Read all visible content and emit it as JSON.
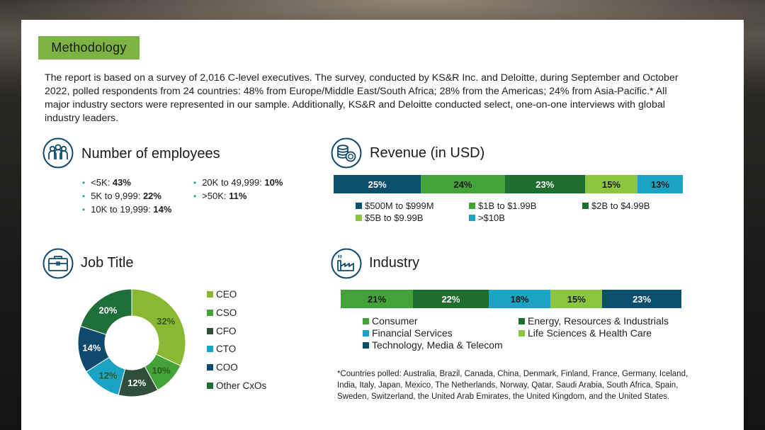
{
  "methodology": {
    "label": "Methodology",
    "text": "The report is based on a survey of 2,016 C-level executives. The survey, conducted by KS&R Inc. and Deloitte, during September and October 2022, polled respondents from 24 countries: 48% from Europe/Middle East/South Africa; 28% from the Americas; 24% from Asia-Pacific.* All major industry sectors were represented in our sample. Additionally, KS&R and Deloitte conducted select, one-on-one interviews with global industry leaders."
  },
  "employees": {
    "title": "Number of employees",
    "icon": "people-icon",
    "items": [
      {
        "label": "<5K: ",
        "value": "43%"
      },
      {
        "label": "5K to 9,999: ",
        "value": "22%"
      },
      {
        "label": "10K to 19,999: ",
        "value": "14%"
      },
      {
        "label": "20K to 49,999: ",
        "value": "10%"
      },
      {
        "label": ">50K: ",
        "value": "11%"
      }
    ]
  },
  "revenue": {
    "title": "Revenue (in USD)",
    "icon": "coins-icon"
  },
  "job_title": {
    "title": "Job Title",
    "icon": "briefcase-icon"
  },
  "industry": {
    "title": "Industry",
    "icon": "factory-icon"
  },
  "footnote": "*Countries polled: Australia, Brazil, Canada, China, Denmark, Finland, France, Germany, Iceland, India, Italy, Japan, Mexico, The Netherlands, Norway, Qatar, Saudi Arabia, South Africa, Spain, Sweden, Switzerland, the United Arab Emirates, the United Kingdom, and the United States.",
  "chart_data": [
    {
      "type": "bar",
      "stacked": true,
      "orientation": "horizontal",
      "title": "Revenue (in USD)",
      "series": [
        {
          "name": "$500M to $999M",
          "value": 25,
          "label": "25%",
          "color": "#0b4f6c"
        },
        {
          "name": "$1B to $1.99B",
          "value": 24,
          "label": "24%",
          "color": "#43a338"
        },
        {
          "name": "$2B to $4.99B",
          "value": 23,
          "label": "23%",
          "color": "#1e6e2e"
        },
        {
          "name": "$5B to $9.99B",
          "value": 15,
          "label": "15%",
          "color": "#8cc63f"
        },
        {
          "name": ">$10B",
          "value": 13,
          "label": "13%",
          "color": "#1ba3c6"
        }
      ]
    },
    {
      "type": "pie",
      "donut": true,
      "title": "Job Title",
      "slices": [
        {
          "name": "CEO",
          "value": 32,
          "label": "32%",
          "color": "#8ab833"
        },
        {
          "name": "CSO",
          "value": 10,
          "label": "10%",
          "color": "#43a338"
        },
        {
          "name": "CFO",
          "value": 12,
          "label": "12%",
          "color": "#2f4f3a"
        },
        {
          "name": "CTO",
          "value": 12,
          "label": "12%",
          "color": "#1ba3c6"
        },
        {
          "name": "COO",
          "value": 14,
          "label": "14%",
          "color": "#0f4a6e"
        },
        {
          "name": "Other CxOs",
          "value": 20,
          "label": "20%",
          "color": "#1e6e3a"
        }
      ]
    },
    {
      "type": "bar",
      "stacked": true,
      "orientation": "horizontal",
      "title": "Industry",
      "series": [
        {
          "name": "Consumer",
          "value": 21,
          "label": "21%",
          "color": "#43a338"
        },
        {
          "name": "Energy, Resources & Industrials",
          "value": 22,
          "label": "22%",
          "color": "#1e6e2e"
        },
        {
          "name": "Financial Services",
          "value": 18,
          "label": "18%",
          "color": "#1ba3c6"
        },
        {
          "name": "Life Sciences & Health Care",
          "value": 15,
          "label": "15%",
          "color": "#8cc63f"
        },
        {
          "name": "Technology, Media & Telecom",
          "value": 23,
          "label": "23%",
          "color": "#0b4f6c"
        }
      ]
    }
  ]
}
